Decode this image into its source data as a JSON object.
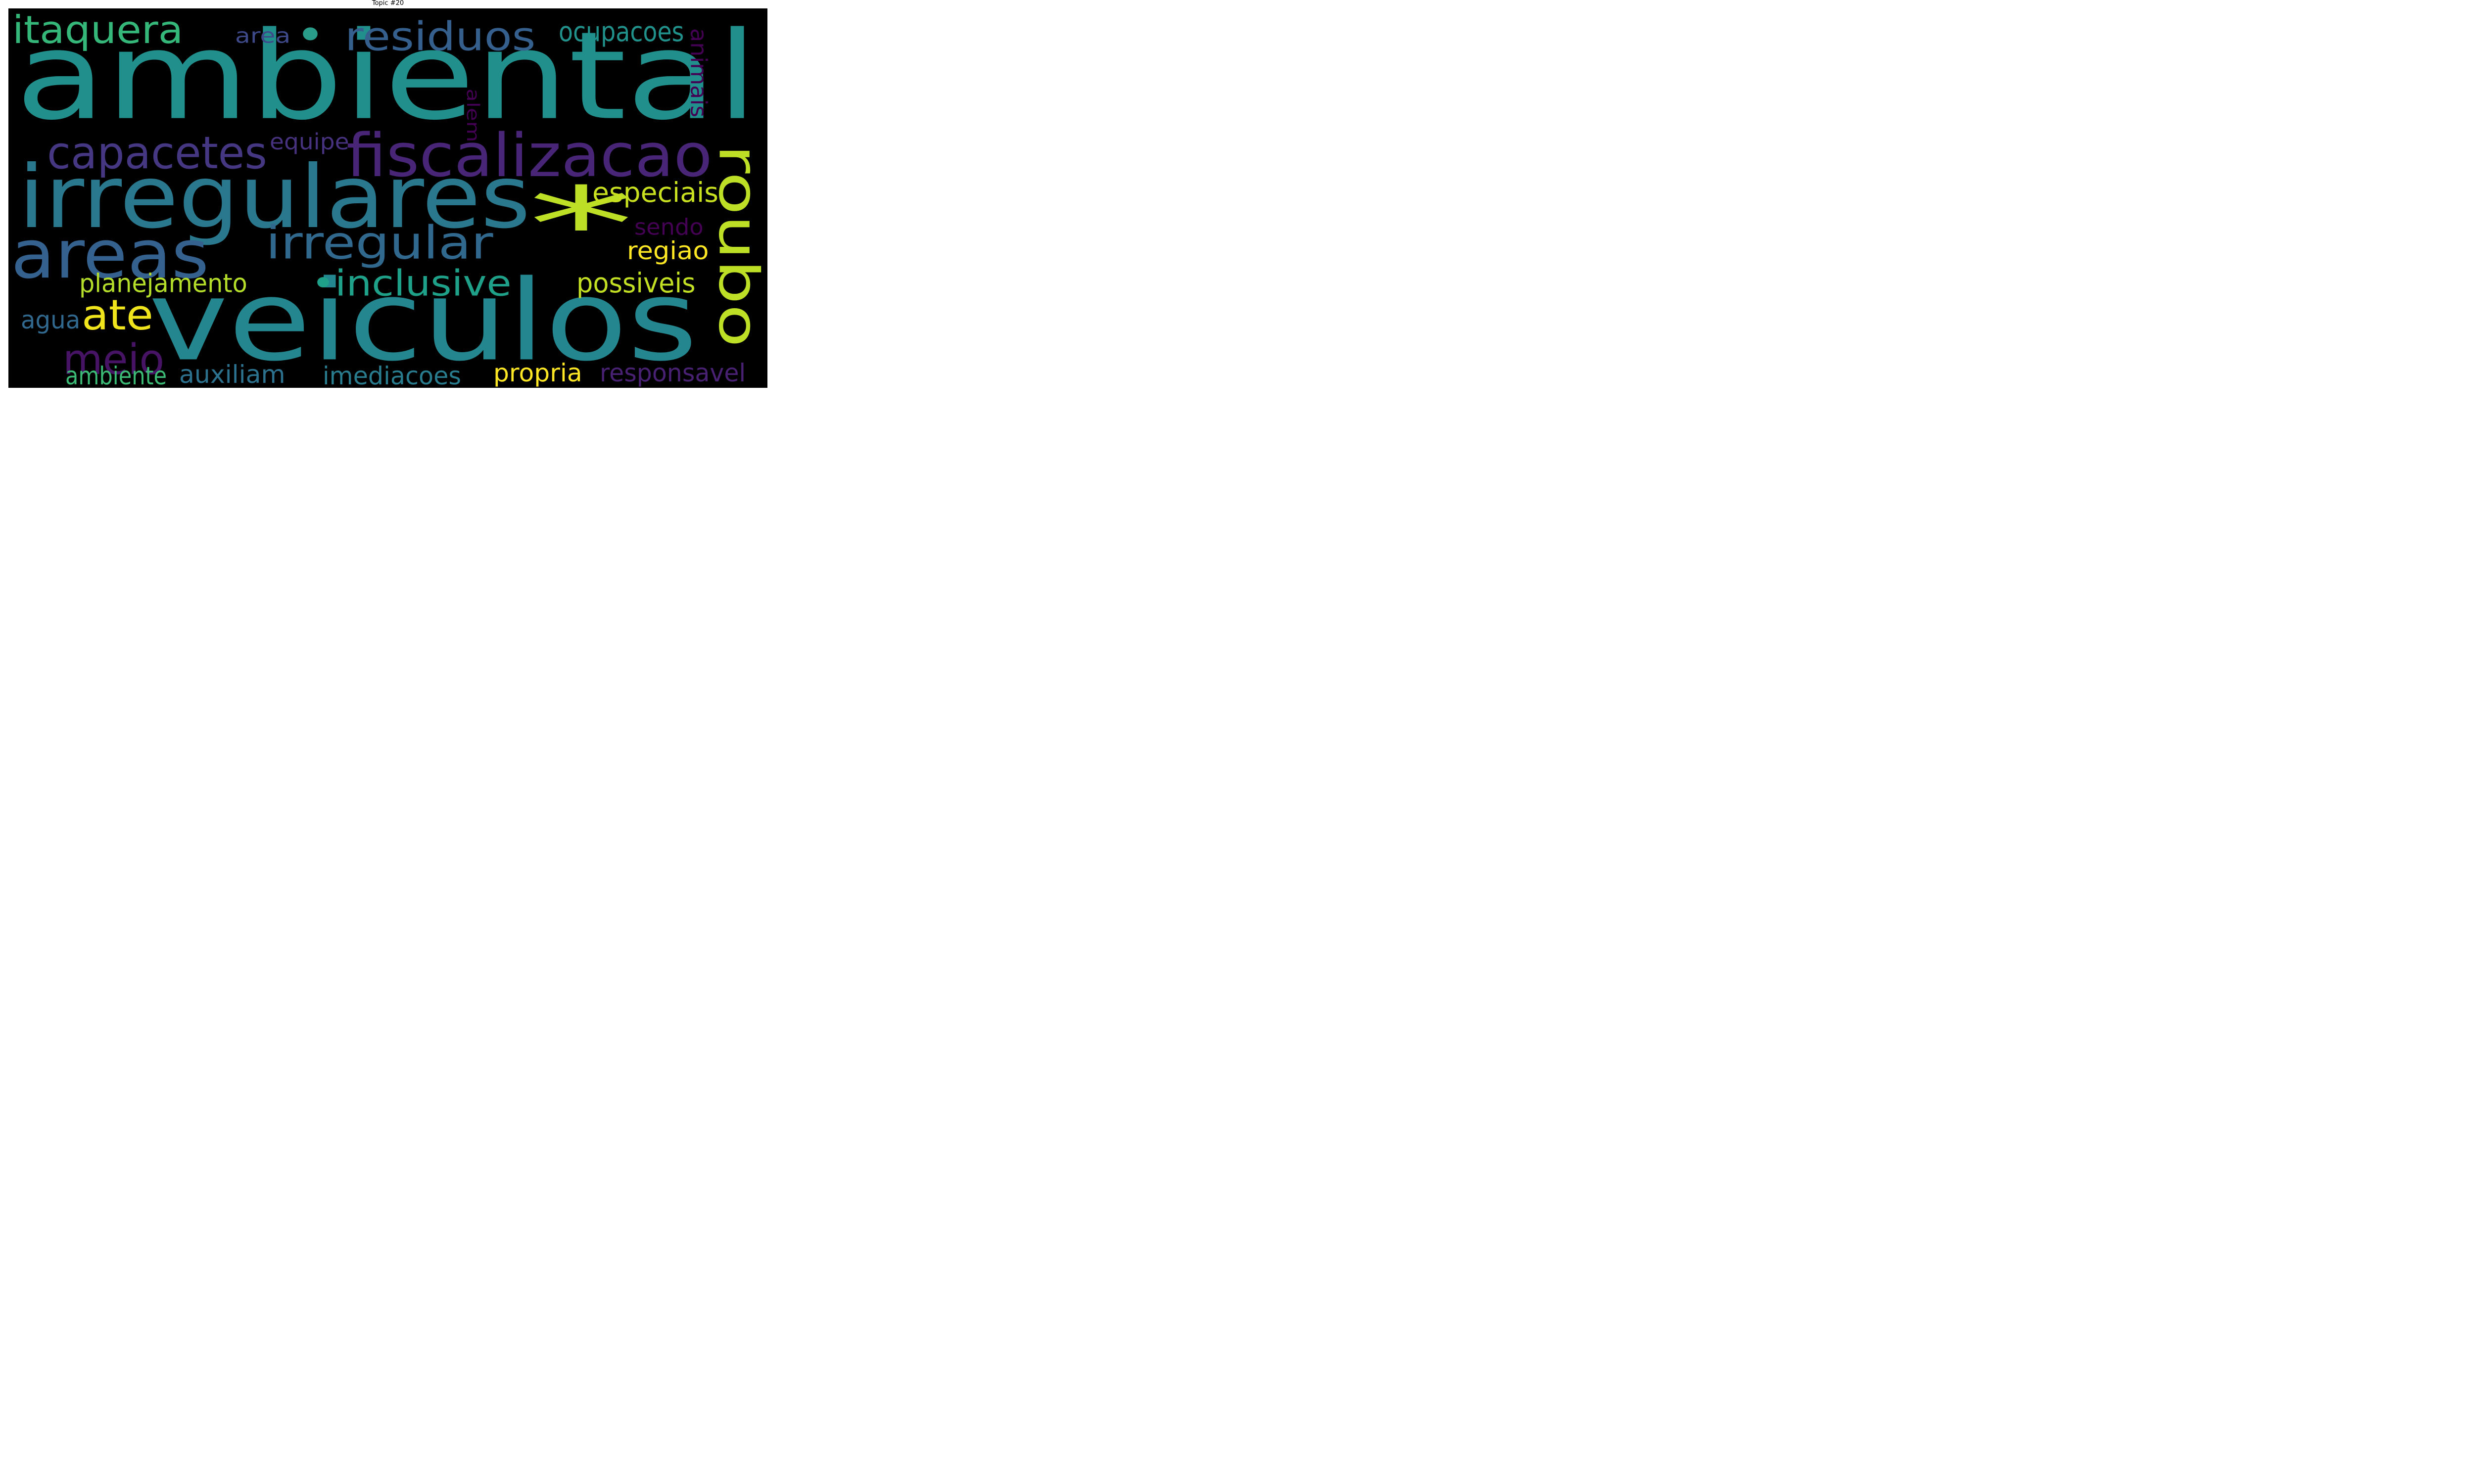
{
  "title": "Topic #20",
  "background_color": "#000000",
  "words": [
    {
      "key": "ambiental",
      "text": "ambiental",
      "color": "#21908d"
    },
    {
      "key": "veiculos",
      "text": "veiculos",
      "color": "#24868e"
    },
    {
      "key": "irregulares",
      "text": "irregulares",
      "color": "#2a788e"
    },
    {
      "key": "asterisk",
      "text": "*",
      "color": "#bddf26"
    },
    {
      "key": "roubo",
      "text": "roubo",
      "color": "#bddf26"
    },
    {
      "key": "fiscalizacao",
      "text": "fiscalizacao",
      "color": "#482576"
    },
    {
      "key": "areas",
      "text": "areas",
      "color": "#34618d"
    },
    {
      "key": "residuos",
      "text": "residuos",
      "color": "#355f8d"
    },
    {
      "key": "dot_top",
      "text": "•",
      "color": "#2a9d8a"
    },
    {
      "key": "itaquera",
      "text": "itaquera",
      "color": "#35b779"
    },
    {
      "key": "capacetes",
      "text": "capacetes",
      "color": "#453781"
    },
    {
      "key": "irregular",
      "text": "irregular",
      "color": "#31688e"
    },
    {
      "key": "inclusive",
      "text": "•inclusive",
      "color": "#1fa088"
    },
    {
      "key": "ate",
      "text": "ate",
      "color": "#f0e51c"
    },
    {
      "key": "meio",
      "text": "meio",
      "color": "#471365"
    },
    {
      "key": "planejamento",
      "text": "planejamento",
      "color": "#b5de2b"
    },
    {
      "key": "ocupacoes",
      "text": "ocupacoes",
      "color": "#21918c"
    },
    {
      "key": "area",
      "text": "area",
      "color": "#3e4989"
    },
    {
      "key": "animais",
      "text": "animais",
      "color": "#440154"
    },
    {
      "key": "alem",
      "text": "alem",
      "color": "#440154"
    },
    {
      "key": "equipe",
      "text": "equipe",
      "color": "#46327e"
    },
    {
      "key": "especiais",
      "text": "especiais",
      "color": "#c8e020"
    },
    {
      "key": "sendo",
      "text": "sendo",
      "color": "#440154"
    },
    {
      "key": "regiao",
      "text": "regiao",
      "color": "#fde725"
    },
    {
      "key": "possiveis",
      "text": "possiveis",
      "color": "#c2df23"
    },
    {
      "key": "agua",
      "text": "agua",
      "color": "#31688e"
    },
    {
      "key": "ambiente",
      "text": "ambiente",
      "color": "#3bbb75"
    },
    {
      "key": "auxiliam",
      "text": "auxiliam",
      "color": "#2c728e"
    },
    {
      "key": "imediacoes",
      "text": "imediacoes",
      "color": "#287c8e"
    },
    {
      "key": "propria",
      "text": "propria",
      "color": "#fde725"
    },
    {
      "key": "responsavel",
      "text": "responsavel",
      "color": "#482173"
    }
  ]
}
